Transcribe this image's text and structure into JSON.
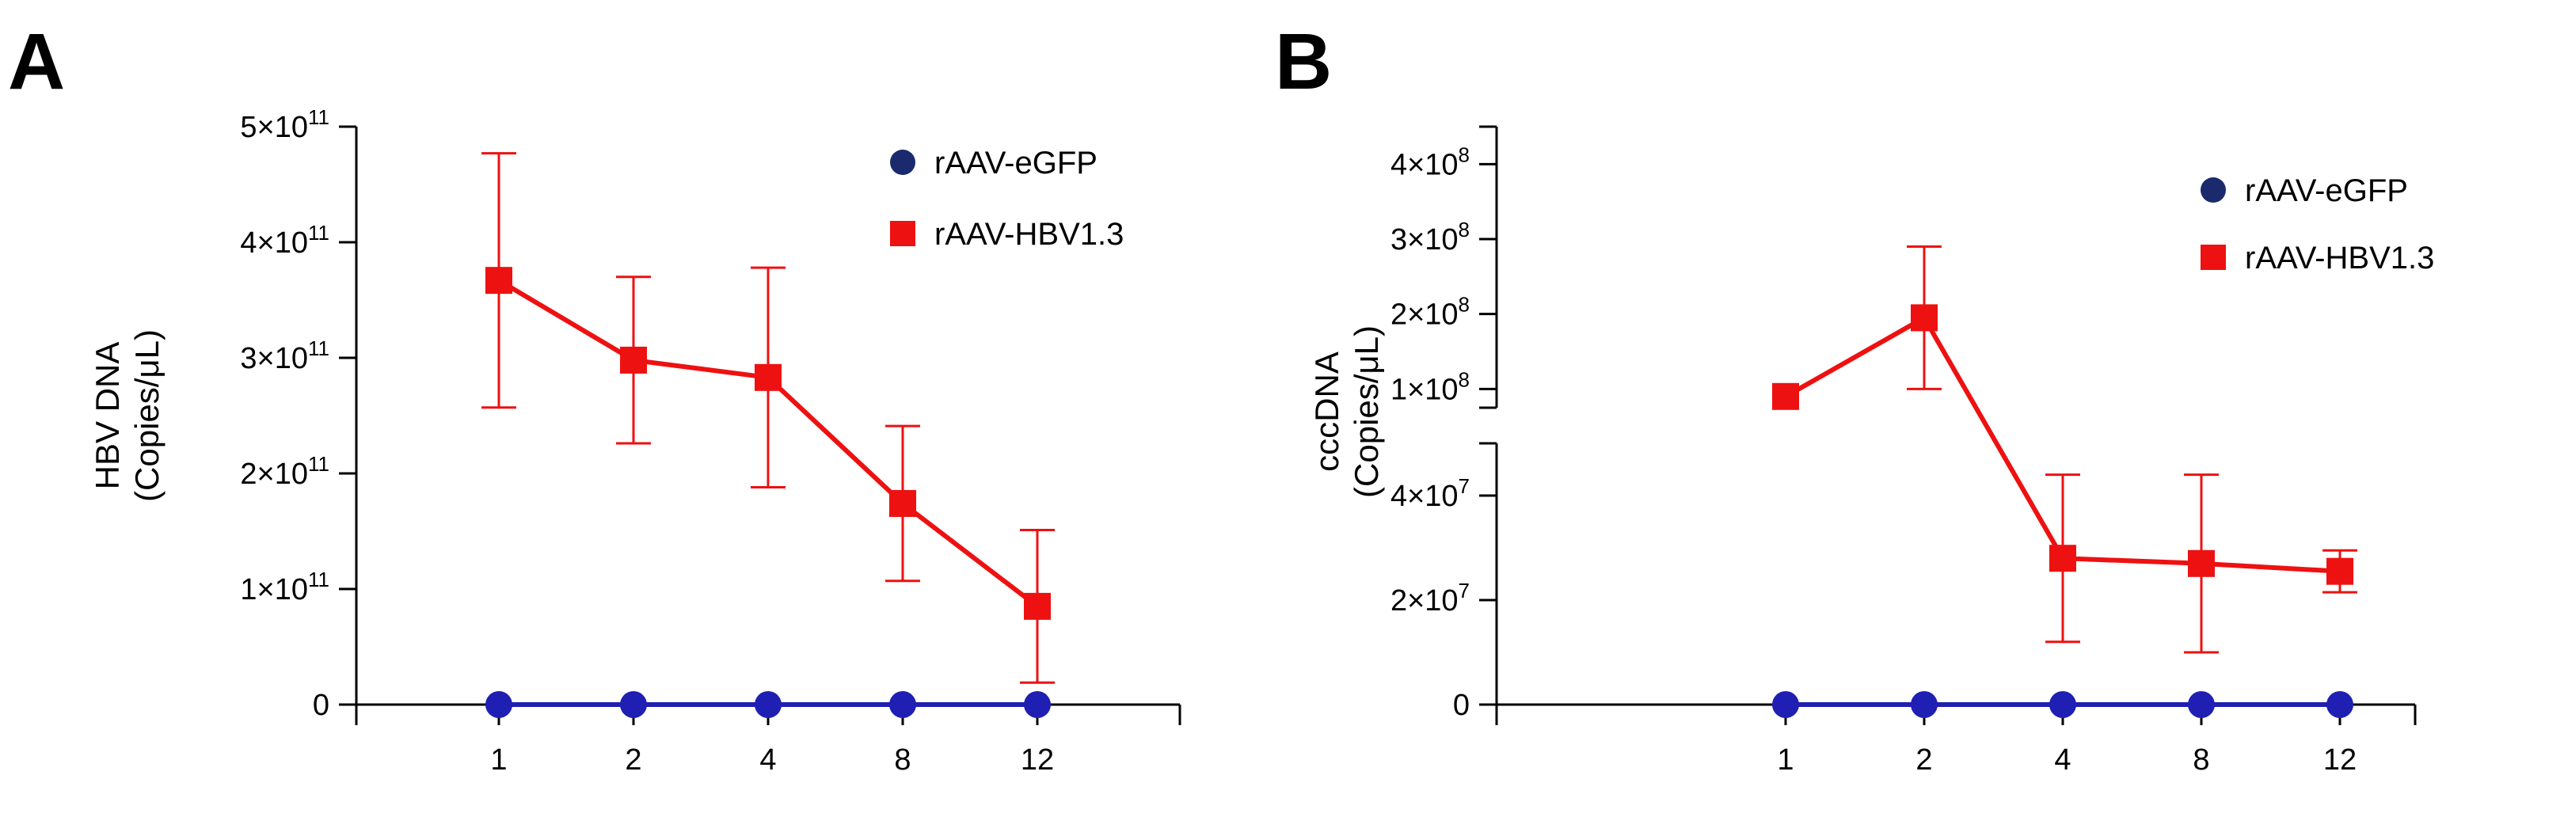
{
  "chart_data": [
    {
      "panel": "A",
      "type": "line",
      "ylabel_lines": [
        "HBV  DNA",
        "(Copies/μL)"
      ],
      "xlabel": "",
      "categories": [
        "1",
        "2",
        "4",
        "8",
        "12"
      ],
      "y_ticks": [
        {
          "value": 0,
          "base": "0",
          "exp": ""
        },
        {
          "value": 100000000000.0,
          "base": "1×10",
          "exp": "11"
        },
        {
          "value": 200000000000.0,
          "base": "2×10",
          "exp": "11"
        },
        {
          "value": 300000000000.0,
          "base": "3×10",
          "exp": "11"
        },
        {
          "value": 400000000000.0,
          "base": "4×10",
          "exp": "11"
        },
        {
          "value": 500000000000.0,
          "base": "5×10",
          "exp": "11"
        }
      ],
      "ylim": [
        0,
        500000000000.0
      ],
      "series": [
        {
          "name": "rAAV-eGFP",
          "marker": "circle",
          "color": "#1f1fb4",
          "values": [
            0,
            0,
            0,
            0,
            0
          ],
          "err": [
            0,
            0,
            0,
            0,
            0
          ]
        },
        {
          "name": "rAAV-HBV1.3",
          "marker": "square",
          "color": "#ee1111",
          "values": [
            367000000000.0,
            298000000000.0,
            283000000000.0,
            174000000000.0,
            85000000000.0
          ],
          "err": [
            110000000000.0,
            72000000000.0,
            95000000000.0,
            67000000000.0,
            66000000000.0
          ]
        }
      ],
      "legend": [
        {
          "name": "rAAV-eGFP",
          "marker": "circle",
          "color": "#1a2a6c"
        },
        {
          "name": "rAAV-HBV1.3",
          "marker": "square",
          "color": "#ee1111"
        }
      ]
    },
    {
      "panel": "B",
      "type": "line",
      "ylabel_lines": [
        "cccDNA",
        "(Copies/μL)"
      ],
      "xlabel": "",
      "categories": [
        "1",
        "2",
        "4",
        "8",
        "12"
      ],
      "y_axis_break": true,
      "y_lower_segment": [
        0,
        50000000.0
      ],
      "y_upper_segment": [
        75000000.0,
        450000000.0
      ],
      "y_ticks": [
        {
          "value": 0,
          "base": "0",
          "exp": ""
        },
        {
          "value": 20000000.0,
          "base": "2×10",
          "exp": "7"
        },
        {
          "value": 40000000.0,
          "base": "4×10",
          "exp": "7"
        },
        {
          "value": 100000000.0,
          "base": "1×10",
          "exp": "8"
        },
        {
          "value": 200000000.0,
          "base": "2×10",
          "exp": "8"
        },
        {
          "value": 300000000.0,
          "base": "3×10",
          "exp": "8"
        },
        {
          "value": 400000000.0,
          "base": "4×10",
          "exp": "8"
        }
      ],
      "series": [
        {
          "name": "rAAV-eGFP",
          "marker": "circle",
          "color": "#1f1fb4",
          "values": [
            0,
            0,
            0,
            0,
            0
          ],
          "err": [
            0,
            0,
            0,
            0,
            0
          ]
        },
        {
          "name": "rAAV-HBV1.3",
          "marker": "square",
          "color": "#ee1111",
          "values": [
            90000000.0,
            195000000.0,
            28000000.0,
            27000000.0,
            25500000.0
          ],
          "err": [
            0,
            95000000.0,
            16000000.0,
            17000000.0,
            4000000.0
          ]
        }
      ],
      "legend": [
        {
          "name": "rAAV-eGFP",
          "marker": "circle",
          "color": "#1a2a6c"
        },
        {
          "name": "rAAV-HBV1.3",
          "marker": "square",
          "color": "#ee1111"
        }
      ]
    }
  ]
}
